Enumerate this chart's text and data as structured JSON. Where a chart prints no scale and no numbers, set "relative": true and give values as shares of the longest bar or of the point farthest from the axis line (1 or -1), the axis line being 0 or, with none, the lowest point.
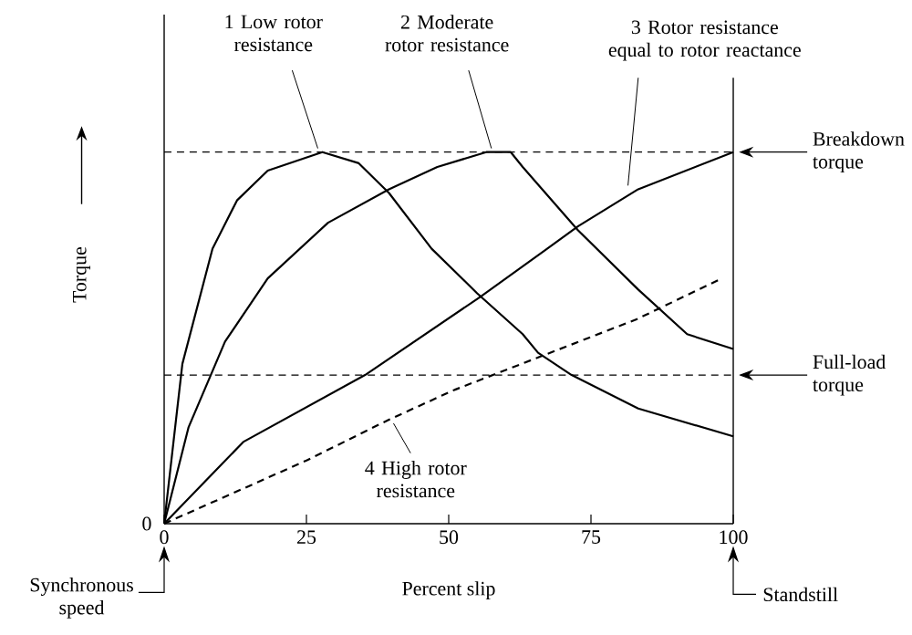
{
  "chart_data": {
    "type": "line",
    "relative": true,
    "xlabel": "Percent slip",
    "ylabel": "Torque",
    "xlim": [
      0,
      100
    ],
    "xticks": [
      0,
      25,
      50,
      75,
      100
    ],
    "grid": false,
    "marker": "none",
    "series": [
      {
        "name": "1 Low rotor resistance",
        "color": "#000000",
        "line_style": "solid",
        "x": [
          0,
          3.2,
          8.5,
          12.8,
          18.2,
          27.8,
          34.2,
          39.5,
          47,
          55,
          63,
          65.7,
          71.6,
          83.3,
          100
        ],
        "values": [
          0,
          0.43,
          0.74,
          0.87,
          0.95,
          1.0,
          0.97,
          0.89,
          0.74,
          0.62,
          0.51,
          0.46,
          0.4,
          0.31,
          0.235
        ]
      },
      {
        "name": "2 Moderate rotor resistance",
        "color": "#000000",
        "line_style": "solid",
        "x": [
          0,
          4.3,
          10.7,
          18.2,
          28.8,
          39.5,
          48,
          56.6,
          60.9,
          63,
          72.7,
          83.3,
          91.9,
          100
        ],
        "values": [
          0,
          0.26,
          0.49,
          0.66,
          0.81,
          0.9,
          0.96,
          1.0,
          1.0,
          0.96,
          0.79,
          0.63,
          0.51,
          0.47
        ]
      },
      {
        "name": "3 Rotor resistance equal to rotor reactance",
        "color": "#000000",
        "line_style": "solid",
        "x": [
          0,
          13.9,
          35.3,
          55.5,
          67.3,
          72.7,
          83.3,
          100
        ],
        "values": [
          0,
          0.22,
          0.4,
          0.61,
          0.74,
          0.8,
          0.9,
          1.0
        ]
      },
      {
        "name": "4 High rotor resistance",
        "color": "#000000",
        "line_style": "dashed",
        "x": [
          0,
          25,
          39.5,
          51,
          83,
          98
        ],
        "values": [
          0,
          0.17,
          0.28,
          0.36,
          0.55,
          0.66
        ]
      }
    ],
    "ref_lines": [
      {
        "axis": "y",
        "value": 1.0,
        "label": "Breakdown torque",
        "line_style": "dashed"
      },
      {
        "axis": "y",
        "value": 0.4,
        "label": "Full-load torque",
        "line_style": "dashed"
      }
    ],
    "annotations": [
      "0",
      "Synchronous speed",
      "Standstill"
    ]
  }
}
